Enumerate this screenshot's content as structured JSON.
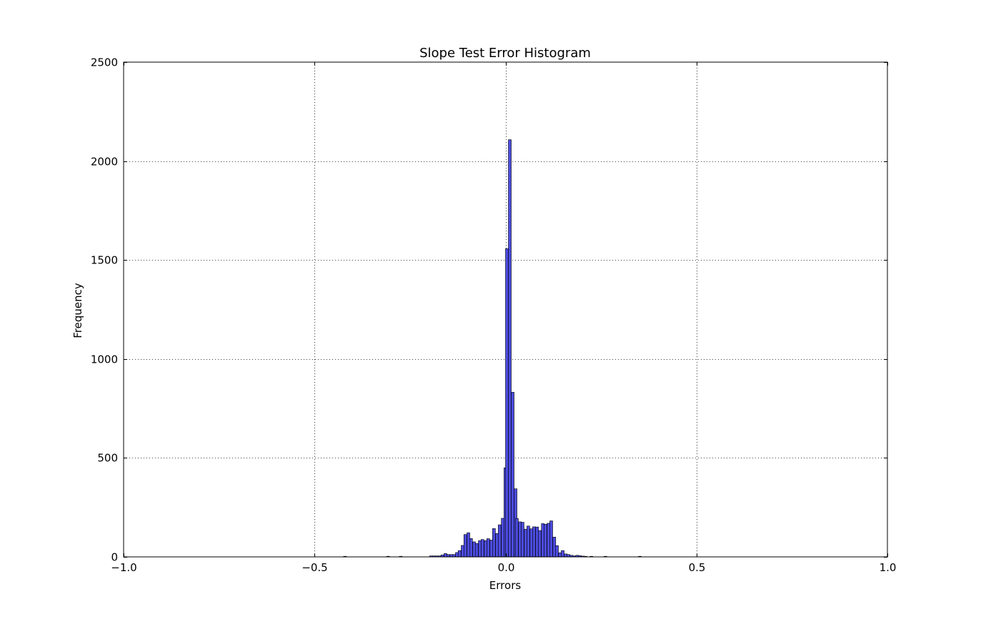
{
  "chart_data": {
    "type": "bar",
    "title": "Slope Test Error Histogram",
    "xlabel": "Errors",
    "ylabel": "Frequency",
    "xlim": [
      -1.0,
      1.0
    ],
    "ylim": [
      0,
      2500
    ],
    "xticks": [
      -1.0,
      -0.5,
      0.0,
      0.5,
      1.0
    ],
    "xtick_labels": [
      "−1.0",
      "−0.5",
      "0.0",
      "0.5",
      "1.0"
    ],
    "yticks": [
      0,
      500,
      1000,
      1500,
      2000,
      2500
    ],
    "ytick_labels": [
      "0",
      "500",
      "1000",
      "1500",
      "2000",
      "2500"
    ],
    "grid": true,
    "bar_color": "#4c4cdf",
    "bin_width": 0.0075,
    "bins": [
      {
        "x": -0.424,
        "value": 3
      },
      {
        "x": -0.311,
        "value": 3
      },
      {
        "x": -0.278,
        "value": 3
      },
      {
        "x": -0.199,
        "value": 5
      },
      {
        "x": -0.191,
        "value": 5
      },
      {
        "x": -0.184,
        "value": 5
      },
      {
        "x": -0.176,
        "value": 5
      },
      {
        "x": -0.169,
        "value": 10
      },
      {
        "x": -0.161,
        "value": 17
      },
      {
        "x": -0.154,
        "value": 12
      },
      {
        "x": -0.146,
        "value": 12
      },
      {
        "x": -0.139,
        "value": 12
      },
      {
        "x": -0.131,
        "value": 22
      },
      {
        "x": -0.124,
        "value": 32
      },
      {
        "x": -0.116,
        "value": 58
      },
      {
        "x": -0.109,
        "value": 113
      },
      {
        "x": -0.101,
        "value": 122
      },
      {
        "x": -0.094,
        "value": 93
      },
      {
        "x": -0.086,
        "value": 76
      },
      {
        "x": -0.079,
        "value": 68
      },
      {
        "x": -0.071,
        "value": 82
      },
      {
        "x": -0.064,
        "value": 88
      },
      {
        "x": -0.056,
        "value": 82
      },
      {
        "x": -0.049,
        "value": 92
      },
      {
        "x": -0.041,
        "value": 85
      },
      {
        "x": -0.034,
        "value": 143
      },
      {
        "x": -0.026,
        "value": 118
      },
      {
        "x": -0.019,
        "value": 162
      },
      {
        "x": -0.011,
        "value": 195
      },
      {
        "x": -0.004,
        "value": 450
      },
      {
        "x": 0.0,
        "value": 1557
      },
      {
        "x": 0.0075,
        "value": 2108
      },
      {
        "x": 0.015,
        "value": 832
      },
      {
        "x": 0.0225,
        "value": 344
      },
      {
        "x": 0.026,
        "value": 194
      },
      {
        "x": 0.034,
        "value": 177
      },
      {
        "x": 0.041,
        "value": 175
      },
      {
        "x": 0.049,
        "value": 140
      },
      {
        "x": 0.056,
        "value": 156
      },
      {
        "x": 0.064,
        "value": 142
      },
      {
        "x": 0.071,
        "value": 152
      },
      {
        "x": 0.079,
        "value": 151
      },
      {
        "x": 0.086,
        "value": 133
      },
      {
        "x": 0.094,
        "value": 168
      },
      {
        "x": 0.101,
        "value": 165
      },
      {
        "x": 0.109,
        "value": 170
      },
      {
        "x": 0.116,
        "value": 182
      },
      {
        "x": 0.124,
        "value": 100
      },
      {
        "x": 0.131,
        "value": 57
      },
      {
        "x": 0.139,
        "value": 21
      },
      {
        "x": 0.146,
        "value": 32
      },
      {
        "x": 0.154,
        "value": 15
      },
      {
        "x": 0.161,
        "value": 12
      },
      {
        "x": 0.169,
        "value": 8
      },
      {
        "x": 0.176,
        "value": 5
      },
      {
        "x": 0.184,
        "value": 8
      },
      {
        "x": 0.191,
        "value": 6
      },
      {
        "x": 0.199,
        "value": 4
      },
      {
        "x": 0.206,
        "value": 3
      },
      {
        "x": 0.221,
        "value": 3
      },
      {
        "x": 0.258,
        "value": 3
      },
      {
        "x": 0.348,
        "value": 3
      }
    ]
  }
}
